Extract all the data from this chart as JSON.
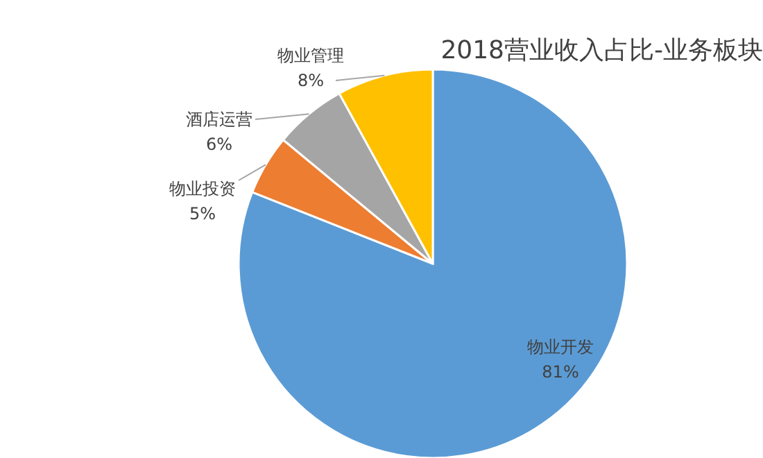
{
  "chart_data": {
    "type": "pie",
    "title": "2018营业收入占比-业务板块",
    "categories": [
      "物业开发",
      "物业投资",
      "酒店运营",
      "物业管理"
    ],
    "values": [
      81,
      5,
      6,
      8
    ],
    "colors": [
      "#5b9bd5",
      "#ed7d31",
      "#a5a5a5",
      "#ffc000"
    ],
    "value_labels": [
      "81%",
      "5%",
      "6%",
      "8%"
    ],
    "legend": false
  }
}
